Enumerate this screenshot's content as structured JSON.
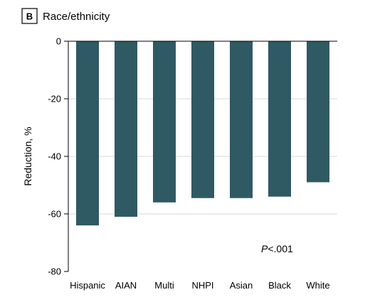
{
  "chart_data": {
    "type": "bar",
    "panel_label": "B",
    "title": "Race/ethnicity",
    "ylabel": "Reduction, %",
    "xlabel": "",
    "categories": [
      "Hispanic",
      "AIAN",
      "Multi",
      "NHPI",
      "Asian",
      "Black",
      "White"
    ],
    "values": [
      -64,
      -61,
      -56,
      -54.5,
      -54.5,
      -54,
      -49
    ],
    "ylim": [
      -80,
      0
    ],
    "yticks": [
      0,
      -20,
      -40,
      -60,
      -80
    ],
    "ytick_labels": [
      "0",
      "-20",
      "-40",
      "-60",
      "-80"
    ],
    "grid": true,
    "annotation": {
      "italic": "P",
      "text": "<.001"
    },
    "bar_color": "#2f5963"
  }
}
